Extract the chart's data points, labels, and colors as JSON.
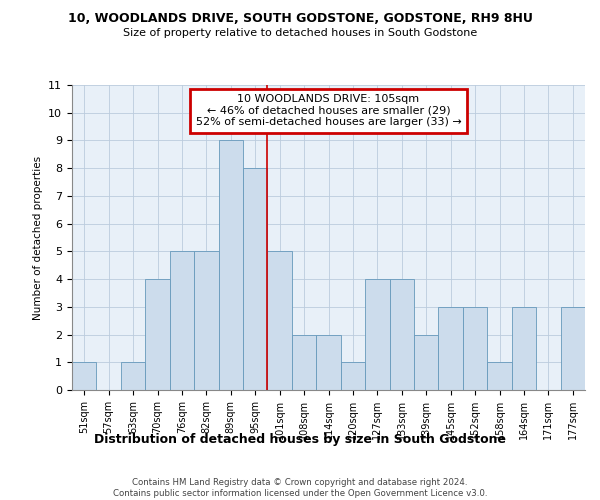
{
  "title1": "10, WOODLANDS DRIVE, SOUTH GODSTONE, GODSTONE, RH9 8HU",
  "title2": "Size of property relative to detached houses in South Godstone",
  "xlabel": "Distribution of detached houses by size in South Godstone",
  "ylabel": "Number of detached properties",
  "categories": [
    "51sqm",
    "57sqm",
    "63sqm",
    "70sqm",
    "76sqm",
    "82sqm",
    "89sqm",
    "95sqm",
    "101sqm",
    "108sqm",
    "114sqm",
    "120sqm",
    "127sqm",
    "133sqm",
    "139sqm",
    "145sqm",
    "152sqm",
    "158sqm",
    "164sqm",
    "171sqm",
    "177sqm"
  ],
  "values": [
    1,
    0,
    1,
    4,
    5,
    5,
    9,
    8,
    5,
    2,
    2,
    1,
    4,
    4,
    2,
    3,
    3,
    1,
    3,
    0,
    3
  ],
  "bar_color": "#ccdcec",
  "bar_edge_color": "#6699bb",
  "grid_color": "#bbccdd",
  "background_color": "#e8f0f8",
  "vline_x": 8,
  "vline_color": "#cc0000",
  "annotation_text": "10 WOODLANDS DRIVE: 105sqm\n← 46% of detached houses are smaller (29)\n52% of semi-detached houses are larger (33) →",
  "annotation_box_color": "#cc0000",
  "footer_text": "Contains HM Land Registry data © Crown copyright and database right 2024.\nContains public sector information licensed under the Open Government Licence v3.0.",
  "ylim": [
    0,
    11
  ],
  "yticks": [
    0,
    1,
    2,
    3,
    4,
    5,
    6,
    7,
    8,
    9,
    10,
    11
  ]
}
